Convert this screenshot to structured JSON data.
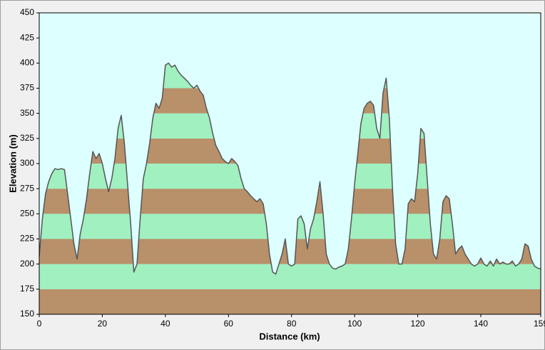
{
  "chart_data": {
    "type": "area",
    "xlabel": "Distance  (km)",
    "ylabel": "Elevation (m)",
    "x": [
      0,
      1,
      2,
      3,
      4,
      5,
      6,
      7,
      8,
      9,
      10,
      11,
      12,
      13,
      14,
      15,
      16,
      17,
      18,
      19,
      20,
      21,
      22,
      23,
      24,
      25,
      26,
      27,
      28,
      29,
      30,
      31,
      32,
      33,
      34,
      35,
      36,
      37,
      38,
      39,
      40,
      41,
      42,
      43,
      44,
      45,
      46,
      47,
      48,
      49,
      50,
      51,
      52,
      53,
      54,
      55,
      56,
      57,
      58,
      59,
      60,
      61,
      62,
      63,
      64,
      65,
      66,
      67,
      68,
      69,
      70,
      71,
      72,
      73,
      74,
      75,
      76,
      77,
      78,
      79,
      80,
      81,
      82,
      83,
      84,
      85,
      86,
      87,
      88,
      89,
      90,
      91,
      92,
      93,
      94,
      95,
      96,
      97,
      98,
      99,
      100,
      101,
      102,
      103,
      104,
      105,
      106,
      107,
      108,
      109,
      110,
      111,
      112,
      113,
      114,
      115,
      116,
      117,
      118,
      119,
      120,
      121,
      122,
      123,
      124,
      125,
      126,
      127,
      128,
      129,
      130,
      131,
      132,
      133,
      134,
      135,
      136,
      137,
      138,
      139,
      140,
      141,
      142,
      143,
      144,
      145,
      146,
      147,
      148,
      149,
      150,
      151,
      152,
      153,
      154,
      155,
      156,
      157,
      158,
      159
    ],
    "values": [
      208,
      245,
      270,
      282,
      290,
      295,
      294,
      295,
      294,
      270,
      245,
      220,
      205,
      230,
      245,
      265,
      290,
      312,
      305,
      310,
      300,
      285,
      272,
      285,
      305,
      335,
      348,
      320,
      280,
      240,
      192,
      200,
      245,
      285,
      300,
      320,
      345,
      360,
      355,
      365,
      398,
      400,
      396,
      398,
      392,
      388,
      385,
      382,
      378,
      375,
      378,
      372,
      368,
      355,
      345,
      330,
      318,
      312,
      305,
      302,
      300,
      305,
      302,
      298,
      285,
      275,
      272,
      268,
      265,
      262,
      265,
      260,
      240,
      210,
      192,
      190,
      200,
      210,
      225,
      200,
      198,
      200,
      245,
      248,
      240,
      215,
      235,
      245,
      262,
      282,
      250,
      210,
      200,
      196,
      195,
      197,
      198,
      200,
      215,
      245,
      280,
      310,
      340,
      355,
      360,
      362,
      358,
      335,
      325,
      370,
      385,
      345,
      275,
      220,
      200,
      200,
      215,
      260,
      265,
      262,
      290,
      335,
      330,
      285,
      240,
      210,
      205,
      225,
      262,
      268,
      265,
      240,
      210,
      215,
      218,
      210,
      205,
      200,
      198,
      200,
      206,
      200,
      198,
      203,
      198,
      205,
      200,
      202,
      200,
      200,
      203,
      198,
      200,
      205,
      220,
      218,
      205,
      198,
      196,
      195
    ],
    "color": "#555555",
    "band_colors": [
      "#b8906a",
      "#a0f0c0"
    ],
    "xlim": [
      0,
      159
    ],
    "ylim": [
      150,
      450
    ],
    "xticks": [
      0,
      20,
      40,
      60,
      80,
      100,
      120,
      140,
      159
    ],
    "yticks": [
      150,
      175,
      200,
      225,
      250,
      275,
      300,
      325,
      350,
      375,
      400,
      425,
      450
    ]
  }
}
